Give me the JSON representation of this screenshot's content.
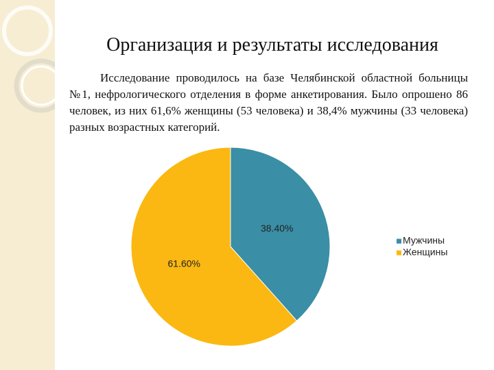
{
  "title": "Организация и результаты исследования",
  "paragraph": "Исследование проводилось на базе Челябинской областной больницы №1, нефрологического отделения в форме анкетирования. Было опрошено 86 человек, из них 61,6% женщины (53 человека) и 38,4% мужчины (33 человека) разных возрастных категорий.",
  "chart_data": {
    "type": "pie",
    "categories": [
      "Мужчины",
      "Женщины"
    ],
    "values": [
      38.4,
      61.6
    ],
    "value_labels": [
      "38.40%",
      "61.60%"
    ],
    "colors": [
      "#3a8ea5",
      "#fbb812"
    ],
    "legend": "right"
  }
}
